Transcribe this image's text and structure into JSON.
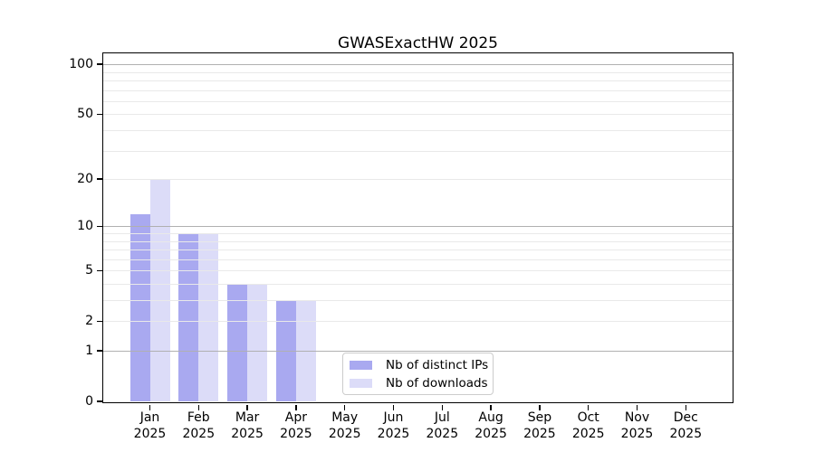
{
  "title": "GWASExactHW 2025",
  "chart_data": {
    "type": "bar",
    "title": "GWASExactHW 2025",
    "categories": [
      "Jan",
      "Feb",
      "Mar",
      "Apr",
      "May",
      "Jun",
      "Jul",
      "Aug",
      "Sep",
      "Oct",
      "Nov",
      "Dec"
    ],
    "year_label": "2025",
    "series": [
      {
        "name": "Nb of distinct IPs",
        "color": "#a9a9f0",
        "values": [
          12,
          9,
          4,
          3,
          0,
          0,
          0,
          0,
          0,
          0,
          0,
          0
        ]
      },
      {
        "name": "Nb of downloads",
        "color": "#dcdcf8",
        "values": [
          20,
          9,
          4,
          3,
          0,
          0,
          0,
          0,
          0,
          0,
          0,
          0
        ]
      }
    ],
    "y_axis": {
      "scale": "log1p",
      "tick_values": [
        0,
        1,
        2,
        5,
        10,
        20,
        50,
        100
      ],
      "major_gridlines": [
        1,
        10,
        100
      ],
      "minor_gridlines": [
        2,
        3,
        4,
        5,
        6,
        7,
        8,
        9,
        20,
        30,
        40,
        50,
        60,
        70,
        80,
        90
      ],
      "ylim": [
        0,
        115
      ]
    },
    "grid": {
      "on": true,
      "major_color": "#b0b0b0",
      "minor_color": "#e9e9e9"
    },
    "legend": {
      "position": "lower center",
      "items": [
        {
          "label": "Nb of distinct IPs",
          "color": "#a9a9f0"
        },
        {
          "label": "Nb of downloads",
          "color": "#dcdcf8"
        }
      ]
    },
    "axis_color": "#000000"
  }
}
